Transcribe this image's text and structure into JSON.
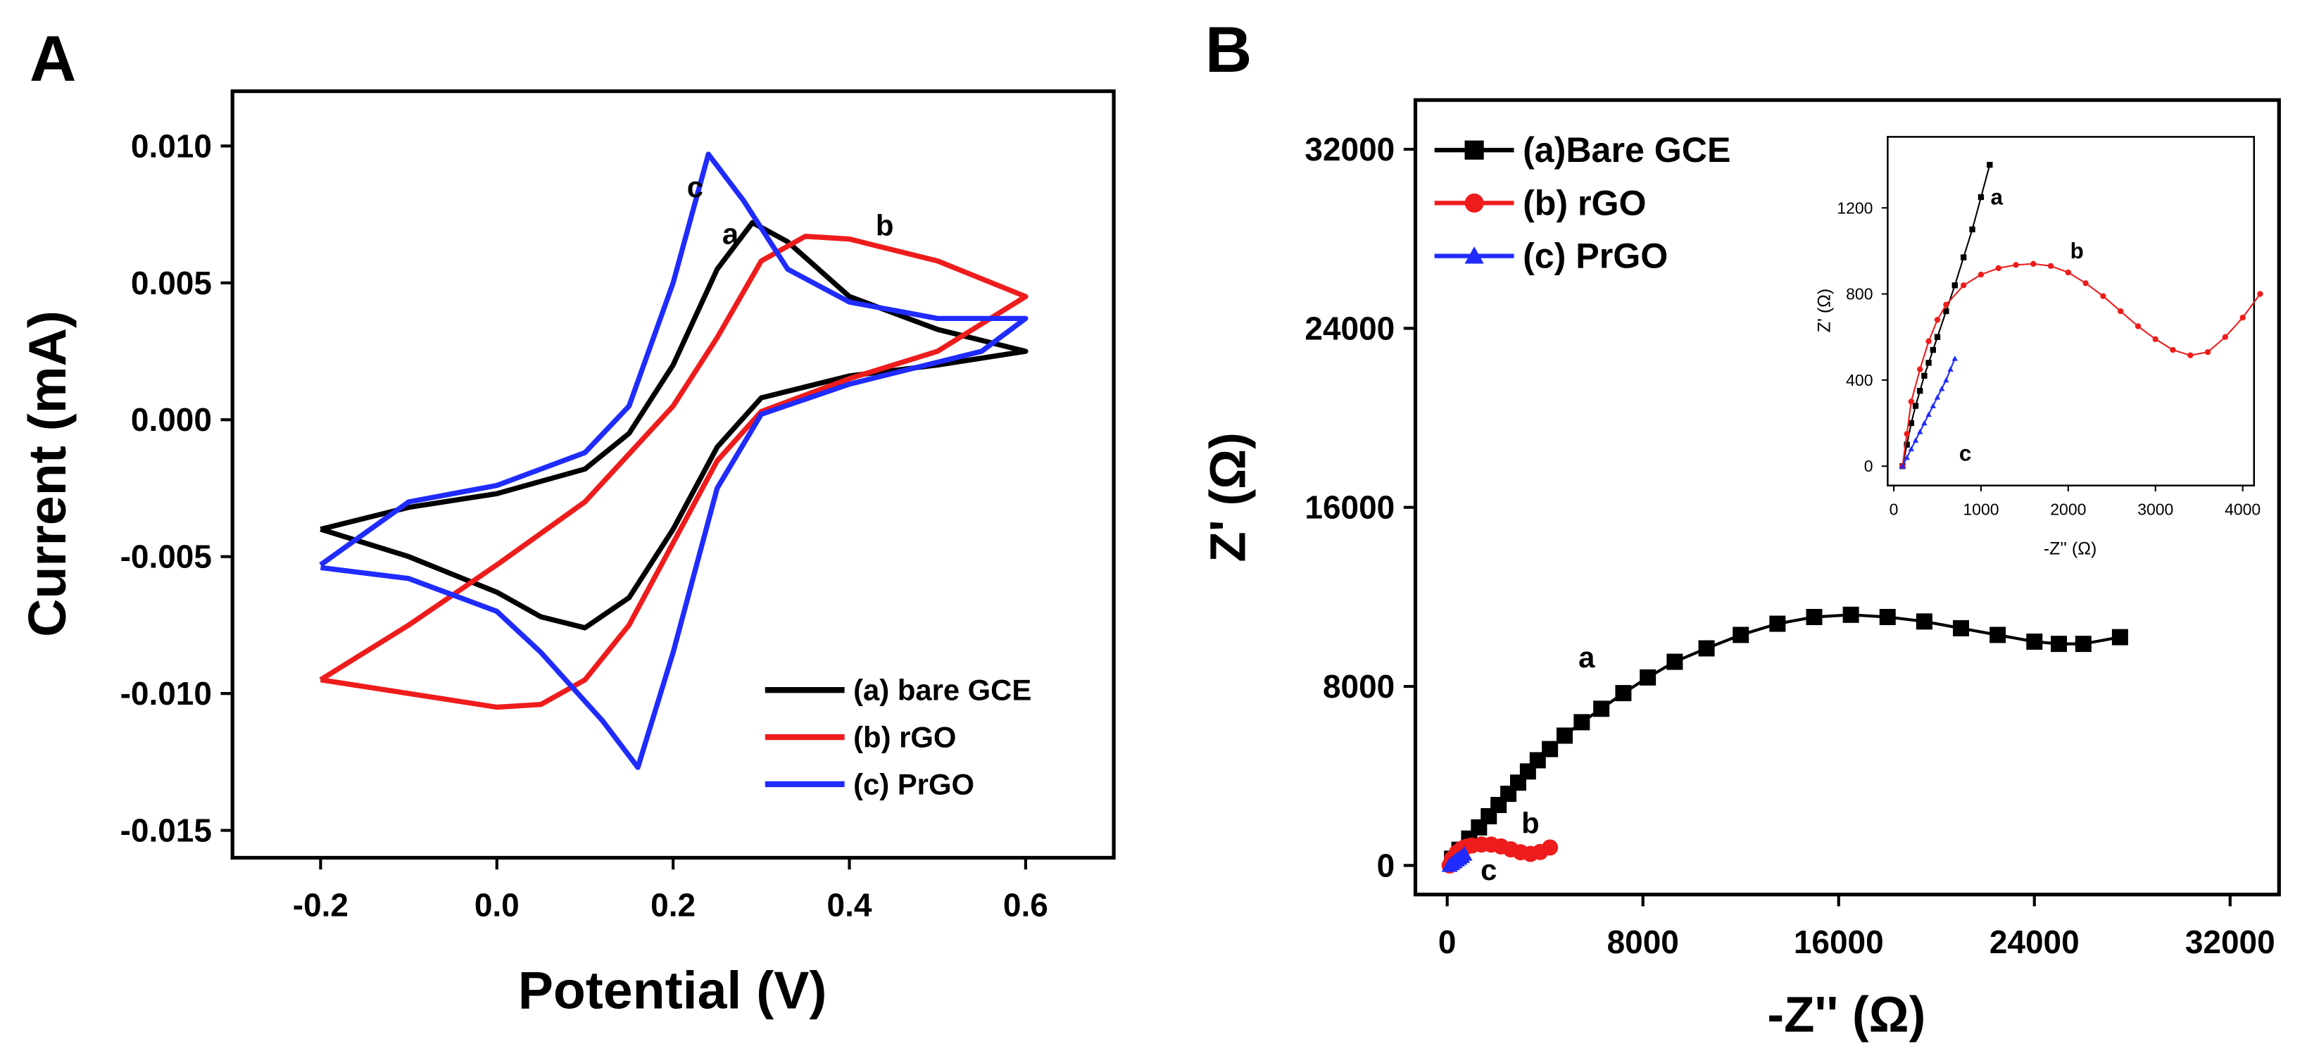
{
  "chart_data": [
    {
      "type": "line",
      "panel_label": "A",
      "xlabel": "Potential (V)",
      "ylabel": "Current (mA)",
      "xlim": [
        -0.3,
        0.7
      ],
      "ylim": [
        -0.016,
        0.012
      ],
      "xticks": [
        -0.2,
        {
          "value": 0,
          "label": "0.0"
        },
        0.2,
        0.4,
        0.6
      ],
      "yticks": [
        -0.015,
        {
          "value": -0.01,
          "label": "-0.010"
        },
        -0.005,
        {
          "value": 0,
          "label": "0.000"
        },
        0.005,
        {
          "value": 0.01,
          "label": "0.010"
        }
      ],
      "annotations": [
        "c",
        "a",
        "b"
      ],
      "series": [
        {
          "name": "(a) bare GCE",
          "color": "#000000",
          "x": [
            -0.2,
            -0.1,
            0.0,
            0.1,
            0.15,
            0.2,
            0.25,
            0.29,
            0.33,
            0.4,
            0.5,
            0.6,
            0.5,
            0.4,
            0.3,
            0.25,
            0.2,
            0.15,
            0.1,
            0.05,
            0.0,
            -0.1,
            -0.2
          ],
          "values": [
            -0.004,
            -0.0032,
            -0.0027,
            -0.0018,
            -0.0005,
            0.002,
            0.0055,
            0.0072,
            0.0065,
            0.0045,
            0.0033,
            0.0025,
            0.002,
            0.0016,
            0.0008,
            -0.001,
            -0.004,
            -0.0065,
            -0.0076,
            -0.0072,
            -0.0063,
            -0.005,
            -0.004
          ]
        },
        {
          "name": "(b) rGO",
          "color": "#ee1c1c",
          "x": [
            -0.2,
            -0.1,
            0.0,
            0.1,
            0.2,
            0.25,
            0.3,
            0.35,
            0.4,
            0.5,
            0.6,
            0.5,
            0.4,
            0.3,
            0.25,
            0.2,
            0.15,
            0.1,
            0.05,
            0.0,
            -0.1,
            -0.2
          ],
          "values": [
            -0.0095,
            -0.0075,
            -0.0053,
            -0.003,
            0.0005,
            0.003,
            0.0058,
            0.0067,
            0.0066,
            0.0058,
            0.0045,
            0.0025,
            0.0015,
            0.0003,
            -0.0015,
            -0.0045,
            -0.0075,
            -0.0095,
            -0.0104,
            -0.0105,
            -0.01,
            -0.0095
          ]
        },
        {
          "name": "(c) PrGO",
          "color": "#1f2bff",
          "x": [
            -0.2,
            -0.1,
            0.0,
            0.1,
            0.15,
            0.2,
            0.24,
            0.28,
            0.33,
            0.4,
            0.5,
            0.6,
            0.55,
            0.4,
            0.3,
            0.25,
            0.2,
            0.16,
            0.12,
            0.05,
            0.0,
            -0.1,
            -0.2
          ],
          "values": [
            -0.0053,
            -0.003,
            -0.0024,
            -0.0012,
            0.0005,
            0.005,
            0.0097,
            0.008,
            0.0055,
            0.0043,
            0.0037,
            0.0037,
            0.0025,
            0.0013,
            0.0002,
            -0.0025,
            -0.0085,
            -0.0127,
            -0.011,
            -0.0085,
            -0.007,
            -0.0058,
            -0.0054
          ]
        }
      ]
    },
    {
      "type": "line",
      "panel_label": "B",
      "xlabel": "-Z'' (Ω)",
      "ylabel": "Z' (Ω)",
      "xlim": [
        -1300,
        34000
      ],
      "ylim": [
        -1300,
        34200
      ],
      "xticks": [
        0,
        8000,
        16000,
        24000,
        32000
      ],
      "yticks": [
        0,
        8000,
        16000,
        24000,
        32000
      ],
      "annotations": [
        "a",
        "b",
        "c"
      ],
      "series": [
        {
          "name": "(a)Bare GCE",
          "color": "#000000",
          "marker": "square",
          "x": [
            200,
            500,
            900,
            1300,
            1700,
            2100,
            2500,
            2900,
            3300,
            3700,
            4200,
            4800,
            5500,
            6300,
            7200,
            8200,
            9300,
            10600,
            12000,
            13500,
            15000,
            16500,
            18000,
            19500,
            21000,
            22500,
            24000,
            25000,
            26000,
            27500
          ],
          "values": [
            300,
            700,
            1200,
            1700,
            2200,
            2700,
            3200,
            3700,
            4200,
            4700,
            5200,
            5800,
            6400,
            7000,
            7700,
            8400,
            9100,
            9700,
            10300,
            10800,
            11100,
            11200,
            11100,
            10900,
            10600,
            10300,
            10000,
            9900,
            9900,
            10200
          ]
        },
        {
          "name": "(b) rGO",
          "color": "#ee1c1c",
          "marker": "circle",
          "x": [
            100,
            200,
            400,
            600,
            800,
            1000,
            1400,
            1800,
            2200,
            2600,
            3000,
            3400,
            3800,
            4200
          ],
          "values": [
            0,
            300,
            580,
            750,
            840,
            890,
            935,
            930,
            850,
            720,
            590,
            515,
            600,
            800
          ]
        },
        {
          "name": "(c) PrGO",
          "color": "#1f2bff",
          "marker": "triangle",
          "x": [
            100,
            200,
            300,
            400,
            500,
            600,
            700
          ],
          "values": [
            0,
            80,
            160,
            240,
            320,
            400,
            500
          ]
        }
      ]
    },
    {
      "type": "line",
      "xlabel": "-Z'' (Ω)",
      "ylabel": "Z' (Ω)",
      "xlim": [
        -70,
        4130
      ],
      "ylim": [
        -90,
        1530
      ],
      "xticks": [
        0,
        1000,
        2000,
        3000,
        4000
      ],
      "yticks": [
        0,
        400,
        800,
        1200
      ],
      "annotations": [
        "a",
        "b",
        "c"
      ],
      "series": [
        {
          "color": "#000000",
          "marker": "square",
          "x": [
            100,
            150,
            200,
            250,
            300,
            350,
            400,
            450,
            500,
            600,
            700,
            800,
            900,
            1000,
            1100
          ],
          "values": [
            0,
            100,
            200,
            280,
            350,
            420,
            480,
            540,
            600,
            720,
            840,
            970,
            1100,
            1250,
            1400
          ]
        },
        {
          "color": "#ee1c1c",
          "marker": "circle",
          "x": [
            100,
            150,
            200,
            300,
            400,
            500,
            600,
            800,
            1000,
            1200,
            1400,
            1600,
            1800,
            2000,
            2200,
            2400,
            2600,
            2800,
            3000,
            3200,
            3400,
            3600,
            3800,
            4000,
            4200
          ],
          "values": [
            0,
            150,
            300,
            450,
            580,
            680,
            750,
            840,
            890,
            920,
            935,
            940,
            930,
            900,
            850,
            790,
            720,
            650,
            590,
            540,
            515,
            530,
            600,
            690,
            800
          ]
        },
        {
          "color": "#1f2bff",
          "marker": "triangle",
          "x": [
            100,
            150,
            200,
            250,
            300,
            350,
            400,
            450,
            500,
            550,
            600,
            650,
            700
          ],
          "values": [
            0,
            40,
            80,
            120,
            160,
            200,
            240,
            280,
            320,
            360,
            400,
            450,
            500
          ]
        }
      ]
    }
  ]
}
